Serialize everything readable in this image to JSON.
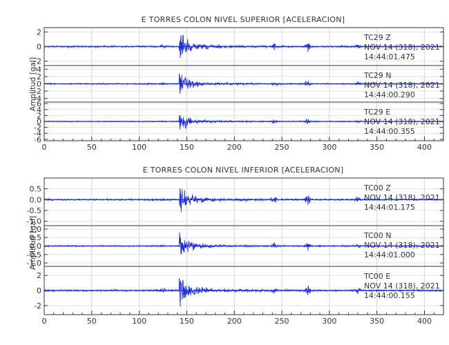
{
  "page_background": "#ffffff",
  "ink_color": "#333333",
  "trace_color": "#1f2fe0",
  "chart_data": [
    {
      "type": "line",
      "title": "E TORRES COLON NIVEL SUPERIOR [ACELERACION]",
      "ylabel": "Amplitud [gal]",
      "xlim": [
        0,
        420
      ],
      "x_ticks": [
        0,
        50,
        100,
        150,
        200,
        250,
        300,
        350,
        400
      ],
      "grid": true,
      "event_x": 142,
      "panels": [
        {
          "channel": "TC29   Z",
          "date": "NOV 14 (318), 2021",
          "time": "14:44:01.475",
          "ylim": [
            -2.6,
            2.6
          ],
          "ticks": [
            2,
            0,
            -2
          ],
          "tick_labels": [
            "2",
            "0",
            "-2"
          ],
          "peak": 2.4
        },
        {
          "channel": "TC29   N",
          "date": "NOV 14 (318), 2021",
          "time": "14:44:00.290",
          "ylim": [
            -5,
            5
          ],
          "ticks": [
            4,
            2,
            0,
            -2,
            -4
          ],
          "tick_labels": [
            "4",
            "2",
            "0",
            "-2",
            "-4"
          ],
          "peak": 3.9
        },
        {
          "channel": "TC29   E",
          "date": "NOV 14 (318), 2021",
          "time": "14:44:00.355",
          "ylim": [
            -6.5,
            6.5
          ],
          "ticks": [
            6,
            4,
            2,
            0,
            -2,
            -4,
            -6
          ],
          "tick_labels": [
            "6",
            "4",
            "2",
            "0",
            "-2",
            "-4",
            "-6"
          ],
          "peak": 3.6
        }
      ]
    },
    {
      "type": "line",
      "title": "E TORRES COLON NIVEL INFERIOR [ACELERACION]",
      "ylabel": "Amplitud [gal]",
      "xlim": [
        0,
        420
      ],
      "x_ticks": [
        0,
        50,
        100,
        150,
        200,
        250,
        300,
        350,
        400
      ],
      "grid": true,
      "event_x": 142,
      "panels": [
        {
          "channel": "TC00   Z",
          "date": "NOV 14 (318), 2021",
          "time": "14:44:01.175",
          "ylim": [
            -1.2,
            1.0
          ],
          "ticks": [
            0.5,
            0.0,
            -0.5,
            -1.0
          ],
          "tick_labels": [
            "0.5",
            "0.0",
            "-0.5",
            "-1.0"
          ],
          "peak": 0.85
        },
        {
          "channel": "TC00   N",
          "date": "NOV 14 (318), 2021",
          "time": "14:44:01.000",
          "ylim": [
            -1.2,
            1.2
          ],
          "ticks": [
            1.0,
            0.5,
            0.0,
            -0.5,
            -1.0
          ],
          "tick_labels": [
            "1.0",
            "0.5",
            "0.0",
            "-0.5",
            "-1.0"
          ],
          "peak": 0.85
        },
        {
          "channel": "TC00   E",
          "date": "NOV 14 (318), 2021",
          "time": "14:44:00.155",
          "ylim": [
            -3.2,
            3.2
          ],
          "ticks": [
            2,
            0,
            -2
          ],
          "tick_labels": [
            "2",
            "0",
            "-2"
          ],
          "peak": 2.7
        }
      ]
    }
  ]
}
